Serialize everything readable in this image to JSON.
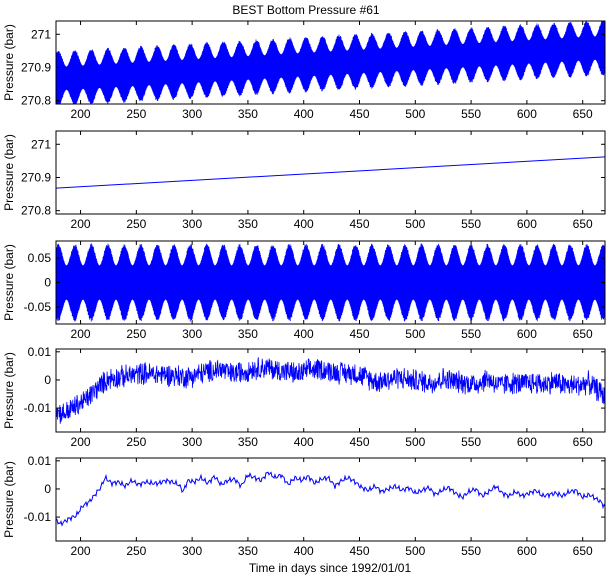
{
  "title": "BEST Bottom Pressure #61",
  "xlabel": "Time in days since 1992/01/01",
  "colors": {
    "series": "#0000ff",
    "axes": "#000000",
    "background": "#ffffff"
  },
  "chart_data": [
    {
      "type": "line",
      "title": "BEST Bottom Pressure #61",
      "xlabel": "",
      "ylabel": "Pressure (bar)",
      "xlim": [
        178,
        670
      ],
      "ylim": [
        270.79,
        271.04
      ],
      "xticks": [
        "200",
        "250",
        "300",
        "350",
        "400",
        "450",
        "500",
        "550",
        "600",
        "650"
      ],
      "yticks": [
        "270.8",
        "270.9",
        "271"
      ],
      "grid": false,
      "signal": {
        "kind": "trend_plus_tide",
        "trend_start": [
          178,
          270.866
        ],
        "trend_end": [
          670,
          270.96
        ],
        "tide_amplitude_range": [
          0.035,
          0.085
        ]
      },
      "series": [
        {
          "x": [
            178,
            670
          ],
          "y_upper": [
            270.91,
            271.02
          ],
          "y_lower": [
            270.81,
            270.89
          ]
        }
      ]
    },
    {
      "type": "line",
      "title": "",
      "xlabel": "",
      "ylabel": "Pressure (bar)",
      "xlim": [
        178,
        670
      ],
      "ylim": [
        270.79,
        271.04
      ],
      "xticks": [
        "200",
        "250",
        "300",
        "350",
        "400",
        "450",
        "500",
        "550",
        "600",
        "650"
      ],
      "yticks": [
        "270.8",
        "270.9",
        "271"
      ],
      "grid": false,
      "series": [
        {
          "x": [
            178,
            670
          ],
          "y": [
            270.868,
            270.962
          ]
        }
      ]
    },
    {
      "type": "line",
      "title": "",
      "xlabel": "",
      "ylabel": "Pressure (bar)",
      "xlim": [
        178,
        670
      ],
      "ylim": [
        -0.085,
        0.085
      ],
      "xticks": [
        "200",
        "250",
        "300",
        "350",
        "400",
        "450",
        "500",
        "550",
        "600",
        "650"
      ],
      "yticks": [
        "-0.05",
        "0",
        "0.05"
      ],
      "grid": false,
      "signal": {
        "kind": "tide",
        "amplitude_range": [
          0.035,
          0.08
        ],
        "spring_neap_period_days": 14.8
      },
      "series": [
        {
          "x": [
            178,
            670
          ],
          "y_upper": [
            0.08,
            0.08
          ],
          "y_lower": [
            -0.08,
            -0.08
          ]
        }
      ]
    },
    {
      "type": "line",
      "title": "",
      "xlabel": "",
      "ylabel": "Pressure (bar)",
      "xlim": [
        178,
        670
      ],
      "ylim": [
        -0.0185,
        0.011
      ],
      "xticks": [
        "200",
        "250",
        "300",
        "350",
        "400",
        "450",
        "500",
        "550",
        "600",
        "650"
      ],
      "yticks": [
        "-0.01",
        "0",
        "0.01"
      ],
      "grid": false,
      "signal": {
        "kind": "residual_noisy",
        "noise_amplitude": 0.0045
      },
      "series": [
        {
          "x": [
            178,
            185,
            195,
            205,
            215,
            225,
            235,
            245,
            255,
            265,
            275,
            285,
            295,
            305,
            315,
            325,
            335,
            345,
            355,
            365,
            375,
            385,
            395,
            405,
            415,
            425,
            435,
            445,
            455,
            465,
            475,
            485,
            495,
            505,
            515,
            525,
            535,
            545,
            555,
            565,
            575,
            585,
            595,
            605,
            615,
            625,
            635,
            645,
            655,
            665,
            670
          ],
          "y": [
            -0.011,
            -0.012,
            -0.0095,
            -0.007,
            -0.003,
            0.0005,
            0.001,
            0.0015,
            0.0025,
            0.002,
            0.002,
            0.0015,
            0.001,
            0.002,
            0.003,
            0.004,
            0.002,
            0.003,
            0.004,
            0.0045,
            0.0035,
            0.003,
            0.002,
            0.0035,
            0.004,
            0.003,
            0.0025,
            0.0025,
            0.001,
            -0.0005,
            0.0,
            0.001,
            0.0,
            -0.0005,
            -0.001,
            0.0005,
            -0.0005,
            -0.001,
            -0.0015,
            0.0005,
            -0.002,
            -0.001,
            -0.0015,
            -0.001,
            -0.0015,
            -0.0005,
            -0.002,
            -0.002,
            -0.001,
            -0.004,
            -0.006
          ]
        }
      ]
    },
    {
      "type": "line",
      "title": "",
      "xlabel": "Time in days since 1992/01/01",
      "ylabel": "Pressure (bar)",
      "xlim": [
        178,
        670
      ],
      "ylim": [
        -0.0185,
        0.011
      ],
      "xticks": [
        "200",
        "250",
        "300",
        "350",
        "400",
        "450",
        "500",
        "550",
        "600",
        "650"
      ],
      "yticks": [
        "-0.01",
        "0",
        "0.01"
      ],
      "grid": false,
      "series": [
        {
          "x": [
            178,
            182,
            186,
            190,
            196,
            202,
            208,
            213,
            218,
            222,
            228,
            234,
            240,
            246,
            252,
            258,
            264,
            270,
            276,
            282,
            288,
            292,
            296,
            302,
            308,
            314,
            320,
            326,
            332,
            338,
            344,
            350,
            356,
            362,
            368,
            374,
            380,
            386,
            392,
            398,
            404,
            410,
            416,
            422,
            428,
            434,
            440,
            446,
            452,
            458,
            464,
            470,
            476,
            482,
            488,
            494,
            500,
            506,
            512,
            518,
            524,
            530,
            536,
            542,
            548,
            554,
            560,
            566,
            572,
            578,
            584,
            590,
            596,
            602,
            608,
            614,
            620,
            626,
            632,
            638,
            644,
            650,
            656,
            662,
            666,
            670
          ],
          "y": [
            -0.011,
            -0.0125,
            -0.0115,
            -0.0105,
            -0.0095,
            -0.006,
            -0.0045,
            -0.002,
            0.0005,
            0.004,
            0.002,
            0.0025,
            0.001,
            0.003,
            0.0015,
            0.0025,
            0.002,
            0.002,
            0.003,
            0.0025,
            0.0015,
            -0.001,
            0.003,
            0.0025,
            0.004,
            0.002,
            0.0045,
            0.0015,
            0.003,
            0.0035,
            0.001,
            0.005,
            0.004,
            0.003,
            0.006,
            0.004,
            0.005,
            0.0015,
            0.004,
            0.003,
            0.0045,
            0.002,
            0.0035,
            0.004,
            0.001,
            0.003,
            0.004,
            0.0025,
            0.0005,
            -0.0005,
            0.001,
            -0.001,
            0.0,
            0.001,
            -0.0005,
            0.0005,
            -0.0015,
            -0.0005,
            0.0005,
            -0.002,
            -0.0005,
            0.0005,
            -0.0015,
            -0.003,
            -0.001,
            0.0,
            -0.0025,
            -0.001,
            0.001,
            -0.0015,
            -0.0025,
            -0.001,
            -0.0025,
            -0.0015,
            -0.0005,
            -0.0025,
            -0.002,
            -0.0015,
            -0.0025,
            -0.001,
            -0.0005,
            -0.003,
            -0.002,
            -0.0035,
            -0.0045,
            -0.0065
          ]
        }
      ]
    }
  ]
}
